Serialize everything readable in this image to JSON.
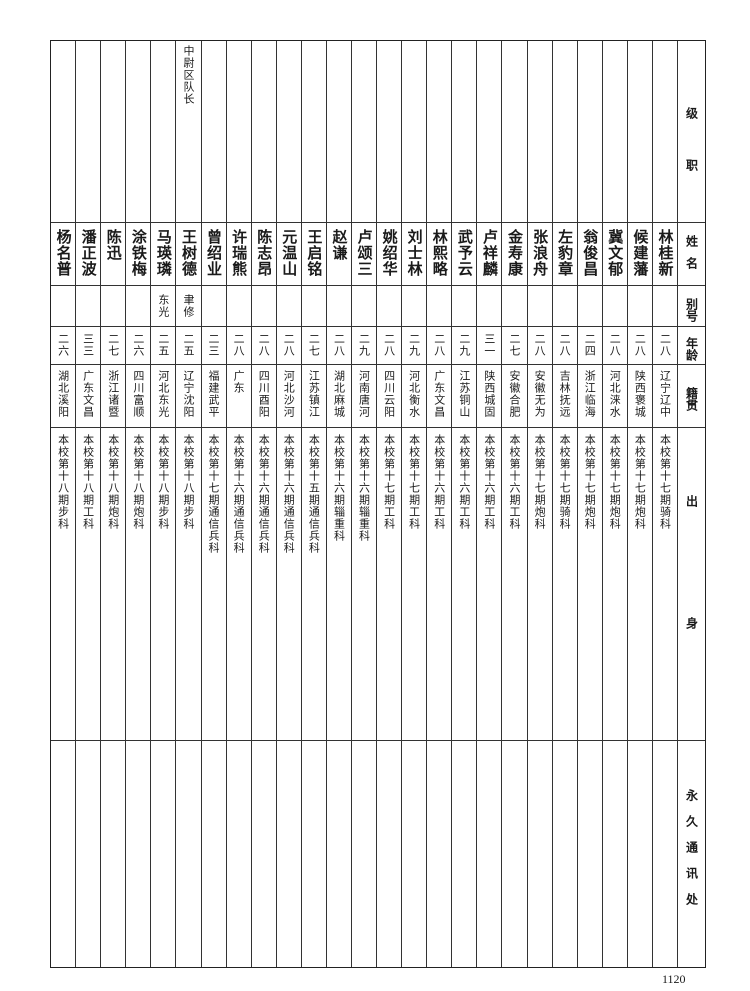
{
  "headers": {
    "rank": "级职",
    "name": "姓名",
    "alias": "别号",
    "age": "年龄",
    "origin": "籍贯",
    "background": "出身",
    "address": "永久通讯处"
  },
  "rows": [
    {
      "rank": "",
      "name": "林桂新",
      "alias": "",
      "age": "二八",
      "origin": "辽宁辽中",
      "background": "本校第十七期骑科",
      "address": ""
    },
    {
      "rank": "",
      "name": "候建藩",
      "alias": "",
      "age": "二八",
      "origin": "陕西褒城",
      "background": "本校第十七期炮科",
      "address": ""
    },
    {
      "rank": "",
      "name": "冀文郁",
      "alias": "",
      "age": "二八",
      "origin": "河北涞水",
      "background": "本校第十七期炮科",
      "address": ""
    },
    {
      "rank": "",
      "name": "翁俊昌",
      "alias": "",
      "age": "二四",
      "origin": "浙江临海",
      "background": "本校第十七期炮科",
      "address": ""
    },
    {
      "rank": "",
      "name": "左豹章",
      "alias": "",
      "age": "二八",
      "origin": "吉林抚远",
      "background": "本校第十七期骑科",
      "address": ""
    },
    {
      "rank": "",
      "name": "张浪舟",
      "alias": "",
      "age": "二八",
      "origin": "安徽无为",
      "background": "本校第十七期炮科",
      "address": ""
    },
    {
      "rank": "",
      "name": "金寿康",
      "alias": "",
      "age": "二七",
      "origin": "安徽合肥",
      "background": "本校第十六期工科",
      "address": ""
    },
    {
      "rank": "",
      "name": "卢祥麟",
      "alias": "",
      "age": "三一",
      "origin": "陕西城固",
      "background": "本校第十六期工科",
      "address": ""
    },
    {
      "rank": "",
      "name": "武予云",
      "alias": "",
      "age": "二九",
      "origin": "江苏铜山",
      "background": "本校第十六期工科",
      "address": ""
    },
    {
      "rank": "",
      "name": "林熙略",
      "alias": "",
      "age": "二八",
      "origin": "广东文昌",
      "background": "本校第十六期工科",
      "address": ""
    },
    {
      "rank": "",
      "name": "刘士林",
      "alias": "",
      "age": "二九",
      "origin": "河北衡水",
      "background": "本校第十七期工科",
      "address": ""
    },
    {
      "rank": "",
      "name": "姚绍华",
      "alias": "",
      "age": "二八",
      "origin": "四川云阳",
      "background": "本校第十七期工科",
      "address": ""
    },
    {
      "rank": "",
      "name": "卢颂三",
      "alias": "",
      "age": "二九",
      "origin": "河南唐河",
      "background": "本校第十六期辎重科",
      "address": ""
    },
    {
      "rank": "",
      "name": "赵谦",
      "alias": "",
      "age": "二八",
      "origin": "湖北麻城",
      "background": "本校第十六期辎重科",
      "address": ""
    },
    {
      "rank": "",
      "name": "王启铭",
      "alias": "",
      "age": "二七",
      "origin": "江苏镇江",
      "background": "本校第十五期通信兵科",
      "address": ""
    },
    {
      "rank": "",
      "name": "元温山",
      "alias": "",
      "age": "二八",
      "origin": "河北沙河",
      "background": "本校第十六期通信兵科",
      "address": ""
    },
    {
      "rank": "",
      "name": "陈志昂",
      "alias": "",
      "age": "二八",
      "origin": "四川酉阳",
      "background": "本校第十六期通信兵科",
      "address": ""
    },
    {
      "rank": "",
      "name": "许瑞熊",
      "alias": "",
      "age": "二八",
      "origin": "广东",
      "background": "本校第十六期通信兵科",
      "address": ""
    },
    {
      "rank": "",
      "name": "曾绍业",
      "alias": "",
      "age": "二三",
      "origin": "福建武平",
      "background": "本校第十七期通信兵科",
      "address": ""
    },
    {
      "rank": "中尉区队长",
      "name": "王树德",
      "alias": "聿修",
      "age": "二五",
      "origin": "辽宁沈阳",
      "background": "本校第十八期步科",
      "address": ""
    },
    {
      "rank": "",
      "name": "马瑛璘",
      "alias": "东光",
      "age": "二五",
      "origin": "河北东光",
      "background": "本校第十八期步科",
      "address": ""
    },
    {
      "rank": "",
      "name": "涂铁梅",
      "alias": "",
      "age": "二六",
      "origin": "四川富顺",
      "background": "本校第十八期炮科",
      "address": ""
    },
    {
      "rank": "",
      "name": "陈迅",
      "alias": "",
      "age": "二七",
      "origin": "浙江诸暨",
      "background": "本校第十八期炮科",
      "address": ""
    },
    {
      "rank": "",
      "name": "潘正波",
      "alias": "",
      "age": "三三",
      "origin": "广东文昌",
      "background": "本校第十八期工科",
      "address": ""
    },
    {
      "rank": "",
      "name": "杨名普",
      "alias": "",
      "age": "二六",
      "origin": "湖北溪阳",
      "background": "本校第十八期步科",
      "address": ""
    }
  ],
  "page_number": "1120"
}
